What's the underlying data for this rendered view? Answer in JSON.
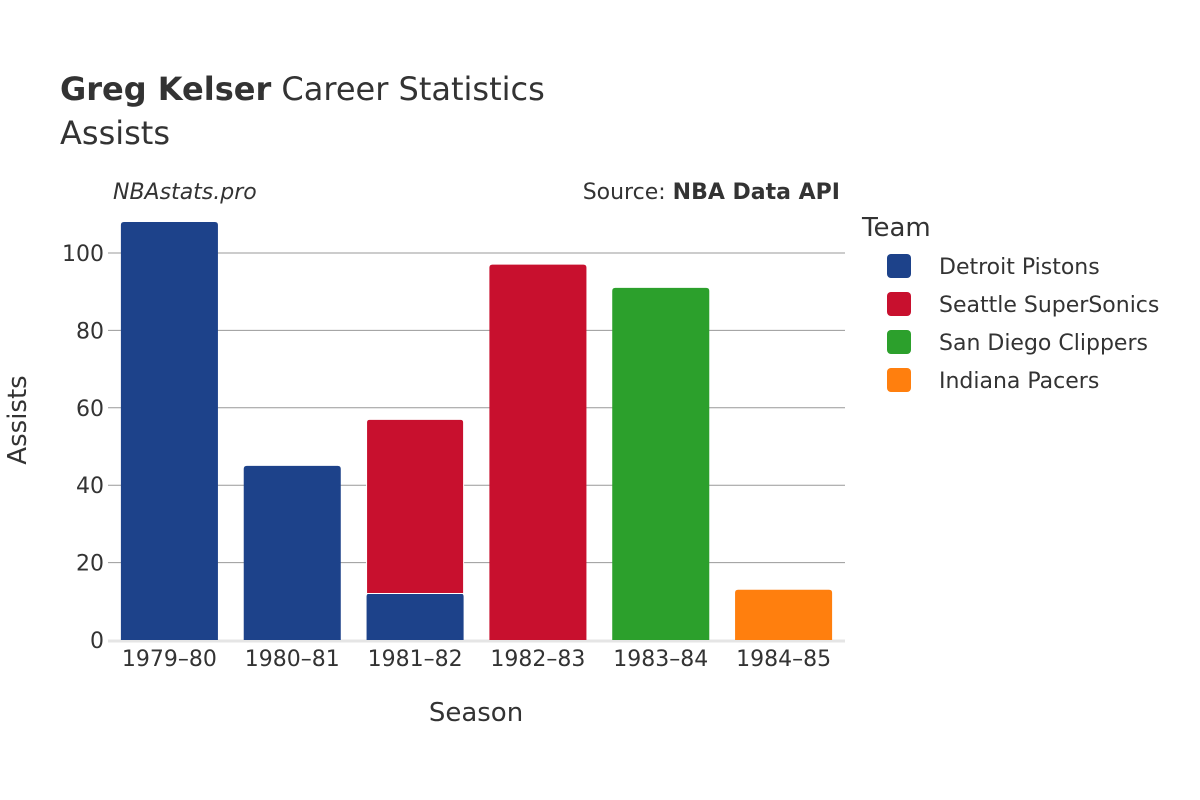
{
  "title_bold": "Greg Kelser",
  "title_rest": " Career Statistics",
  "subtitle": "Assists",
  "watermark": "NBAstats.pro",
  "source_prefix": "Source: ",
  "source_bold": "NBA Data API",
  "chart_data": {
    "type": "bar",
    "stacked": true,
    "title": "Greg Kelser Career Statistics — Assists",
    "xlabel": "Season",
    "ylabel": "Assists",
    "ylim": [
      0,
      110
    ],
    "yticks": [
      0,
      20,
      40,
      60,
      80,
      100
    ],
    "grid": true,
    "legend_title": "Team",
    "legend_position": "right",
    "categories": [
      "1979–80",
      "1980–81",
      "1981–82",
      "1982–83",
      "1983–84",
      "1984–85"
    ],
    "series": [
      {
        "name": "Detroit Pistons",
        "color": "#1d428a",
        "values": [
          108,
          45,
          12,
          0,
          0,
          0
        ]
      },
      {
        "name": "Seattle SuperSonics",
        "color": "#c8102e",
        "values": [
          0,
          0,
          45,
          97,
          0,
          0
        ]
      },
      {
        "name": "San Diego Clippers",
        "color": "#2ca02c",
        "values": [
          0,
          0,
          0,
          0,
          91,
          0
        ]
      },
      {
        "name": "Indiana Pacers",
        "color": "#ff7f0e",
        "values": [
          0,
          0,
          0,
          0,
          0,
          13
        ]
      }
    ]
  }
}
